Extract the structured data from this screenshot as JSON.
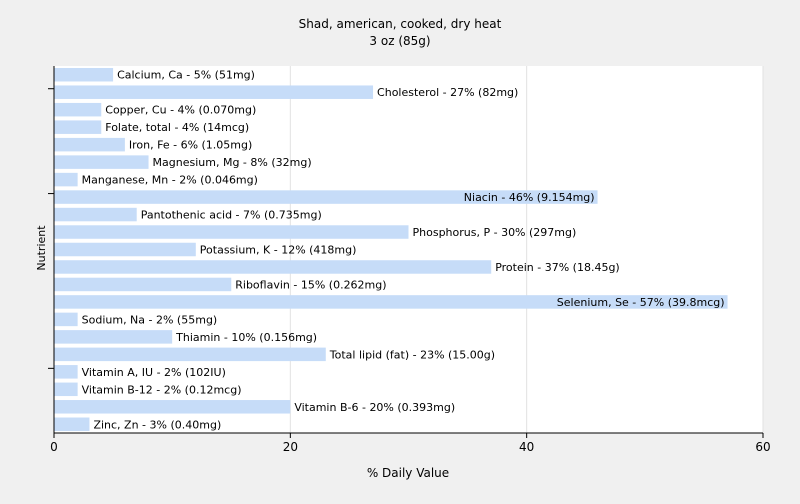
{
  "chart_data": {
    "type": "bar",
    "orientation": "horizontal",
    "title": "Shad, american, cooked, dry heat",
    "subtitle": "3 oz (85g)",
    "xlabel": "% Daily Value",
    "ylabel": "Nutrient",
    "xlim": [
      0,
      60
    ],
    "xticks": [
      0,
      20,
      40,
      60
    ],
    "grid": true,
    "bar_color": "#c6dcf8",
    "background_color": "#f0f0f0",
    "plot_background_color": "#ffffff",
    "categories": [
      "Calcium, Ca",
      "Cholesterol",
      "Copper, Cu",
      "Folate, total",
      "Iron, Fe",
      "Magnesium, Mg",
      "Manganese, Mn",
      "Niacin",
      "Pantothenic acid",
      "Phosphorus, P",
      "Potassium, K",
      "Protein",
      "Riboflavin",
      "Selenium, Se",
      "Sodium, Na",
      "Thiamin",
      "Total lipid (fat)",
      "Vitamin A, IU",
      "Vitamin B-12",
      "Vitamin B-6",
      "Zinc, Zn"
    ],
    "values": [
      5,
      27,
      4,
      4,
      6,
      8,
      2,
      46,
      7,
      30,
      12,
      37,
      15,
      57,
      2,
      10,
      23,
      2,
      2,
      20,
      3
    ],
    "data_labels": [
      "Calcium, Ca - 5% (51mg)",
      "Cholesterol - 27% (82mg)",
      "Copper, Cu - 4% (0.070mg)",
      "Folate, total - 4% (14mcg)",
      "Iron, Fe - 6% (1.05mg)",
      "Magnesium, Mg - 8% (32mg)",
      "Manganese, Mn - 2% (0.046mg)",
      "Niacin - 46% (9.154mg)",
      "Pantothenic acid - 7% (0.735mg)",
      "Phosphorus, P - 30% (297mg)",
      "Potassium, K - 12% (418mg)",
      "Protein - 37% (18.45g)",
      "Riboflavin - 15% (0.262mg)",
      "Selenium, Se - 57% (39.8mcg)",
      "Sodium, Na - 2% (55mg)",
      "Thiamin - 10% (0.156mg)",
      "Total lipid (fat) - 23% (15.00g)",
      "Vitamin A, IU - 2% (102IU)",
      "Vitamin B-12 - 2% (0.12mcg)",
      "Vitamin B-6 - 20% (0.393mg)",
      "Zinc, Zn - 3% (0.40mg)"
    ]
  }
}
